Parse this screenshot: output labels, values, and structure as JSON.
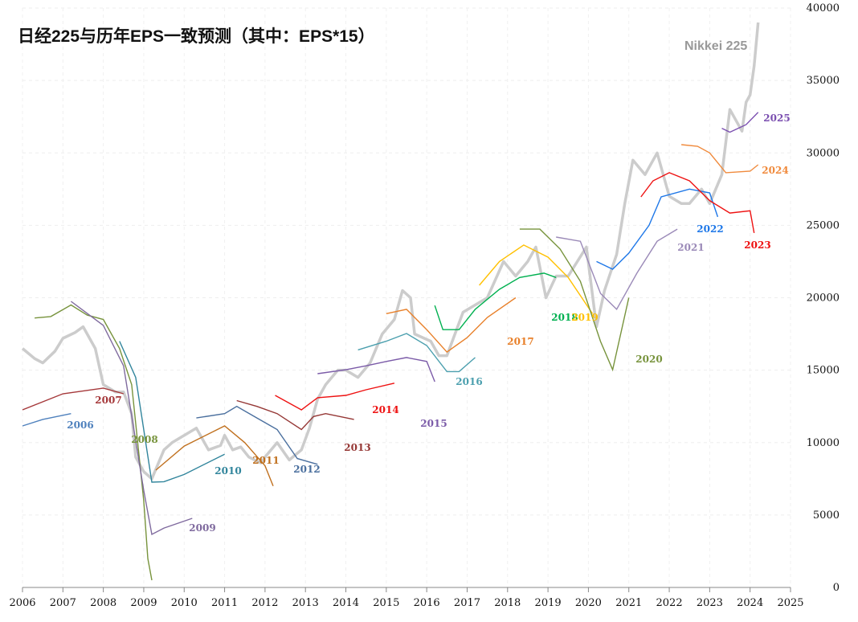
{
  "chart_data": {
    "type": "line",
    "title": "日经225与历年EPS一致预测（其中：EPS*15）",
    "xlabel": "",
    "ylabel": "",
    "xlim": [
      2006,
      2025
    ],
    "ylim": [
      0,
      40000
    ],
    "x_ticks": [
      "2006",
      "2007",
      "2008",
      "2009",
      "2010",
      "2011",
      "2012",
      "2013",
      "2014",
      "2015",
      "2016",
      "2017",
      "2018",
      "2019",
      "2020",
      "2021",
      "2022",
      "2023",
      "2024",
      "2025"
    ],
    "y_ticks": [
      "0",
      "5000",
      "10000",
      "15000",
      "20000",
      "25000",
      "30000",
      "35000",
      "40000"
    ],
    "grid": true,
    "nikkei": {
      "name": "Nikkei 225",
      "color": "#cccccc",
      "x": [
        2006.0,
        2006.3,
        2006.5,
        2006.8,
        2007.0,
        2007.3,
        2007.5,
        2007.8,
        2008.0,
        2008.3,
        2008.5,
        2008.7,
        2008.8,
        2009.0,
        2009.2,
        2009.5,
        2009.7,
        2010.0,
        2010.3,
        2010.6,
        2010.9,
        2011.0,
        2011.2,
        2011.4,
        2011.6,
        2011.9,
        2012.0,
        2012.3,
        2012.6,
        2012.9,
        2013.1,
        2013.3,
        2013.5,
        2013.8,
        2014.0,
        2014.3,
        2014.6,
        2014.9,
        2015.2,
        2015.4,
        2015.6,
        2015.7,
        2016.1,
        2016.3,
        2016.5,
        2016.9,
        2017.2,
        2017.5,
        2017.9,
        2018.2,
        2018.5,
        2018.7,
        2018.95,
        2019.2,
        2019.5,
        2019.95,
        2020.2,
        2020.4,
        2020.7,
        2020.9,
        2021.1,
        2021.4,
        2021.7,
        2022.0,
        2022.3,
        2022.5,
        2022.8,
        2023.0,
        2023.3,
        2023.5,
        2023.8,
        2023.9,
        2024.0,
        2024.1,
        2024.2
      ],
      "y": [
        16500,
        15800,
        15500,
        16300,
        17200,
        17600,
        18000,
        16500,
        14000,
        13500,
        13500,
        12000,
        9000,
        8000,
        7500,
        9500,
        10000,
        10500,
        11000,
        9500,
        9800,
        10500,
        9500,
        9700,
        9000,
        8600,
        9000,
        10000,
        8800,
        9500,
        11000,
        13000,
        14000,
        15000,
        15000,
        14500,
        15500,
        17500,
        18500,
        20500,
        20000,
        17500,
        17000,
        16000,
        16000,
        19000,
        19500,
        20000,
        22500,
        21500,
        22500,
        23500,
        20000,
        21500,
        21500,
        23500,
        18000,
        20500,
        23000,
        26500,
        29500,
        28500,
        30000,
        27000,
        26500,
        26500,
        27500,
        26500,
        28500,
        33000,
        31500,
        33500,
        34000,
        36000,
        39000
      ]
    },
    "series": [
      {
        "name": "2006",
        "color": "#4f81bd",
        "x": [
          2006.0,
          2006.5,
          2007.2
        ],
        "y": [
          11150,
          11600,
          12000
        ]
      },
      {
        "name": "2007",
        "color": "#a5383a",
        "x": [
          2006.0,
          2007.0,
          2008.0,
          2008.5
        ],
        "y": [
          12260,
          13370,
          13760,
          13370
        ]
      },
      {
        "name": "2008",
        "color": "#77933c",
        "x": [
          2006.3,
          2006.7,
          2007.2,
          2007.6,
          2008.0,
          2008.4,
          2008.7,
          2009.0,
          2009.1,
          2009.2
        ],
        "y": [
          18600,
          18700,
          19500,
          18800,
          18500,
          16500,
          14000,
          6000,
          2000,
          500
        ]
      },
      {
        "name": "2009",
        "color": "#7f6a9e",
        "x": [
          2007.2,
          2008.0,
          2008.5,
          2009.0,
          2009.2,
          2009.5,
          2010.2
        ],
        "y": [
          19750,
          18090,
          15300,
          6700,
          3660,
          4100,
          4770
        ]
      },
      {
        "name": "2010",
        "color": "#31859c",
        "x": [
          2008.4,
          2008.8,
          2009.2,
          2009.5,
          2010.0,
          2011.0
        ],
        "y": [
          17000,
          14500,
          7270,
          7300,
          7800,
          9200
        ]
      },
      {
        "name": "2011",
        "color": "#c0701e",
        "x": [
          2009.3,
          2010.0,
          2011.0,
          2011.5,
          2012.0,
          2012.2
        ],
        "y": [
          8100,
          9760,
          11150,
          10000,
          8400,
          7000
        ]
      },
      {
        "name": "2012",
        "color": "#4a6f9e",
        "x": [
          2010.3,
          2011.0,
          2011.3,
          2011.8,
          2012.3,
          2012.8,
          2013.3
        ],
        "y": [
          11700,
          12000,
          12500,
          11700,
          10900,
          8900,
          8500
        ]
      },
      {
        "name": "2013",
        "color": "#953735",
        "x": [
          2011.3,
          2011.8,
          2012.3,
          2012.9,
          2013.2,
          2013.5,
          2014.2
        ],
        "y": [
          12900,
          12500,
          12000,
          10900,
          11800,
          12000,
          11600
        ]
      },
      {
        "name": "2014",
        "color": "#ee1111",
        "x": [
          2012.25,
          2012.9,
          2013.3,
          2014.0,
          2014.5,
          2015.2
        ],
        "y": [
          13260,
          12260,
          13100,
          13260,
          13650,
          14100
        ]
      },
      {
        "name": "2015",
        "color": "#7b5ba8",
        "x": [
          2013.3,
          2014.0,
          2014.5,
          2015.0,
          2015.5,
          2016.0,
          2016.2
        ],
        "y": [
          14760,
          15030,
          15300,
          15600,
          15870,
          15600,
          14200
        ]
      },
      {
        "name": "2016",
        "color": "#4b9fae",
        "x": [
          2014.3,
          2015.0,
          2015.5,
          2016.0,
          2016.5,
          2016.8,
          2017.2
        ],
        "y": [
          16400,
          17000,
          17530,
          16700,
          14900,
          14900,
          15870
        ]
      },
      {
        "name": "2017",
        "color": "#e8802a",
        "x": [
          2015.0,
          2015.5,
          2016.0,
          2016.5,
          2017.0,
          2017.5,
          2018.2
        ],
        "y": [
          18900,
          19200,
          17800,
          16250,
          17250,
          18640,
          20000
        ]
      },
      {
        "name": "2018",
        "color": "#00b050",
        "x": [
          2016.2,
          2016.4,
          2016.8,
          2017.2,
          2017.8,
          2018.3,
          2018.9,
          2019.2
        ],
        "y": [
          19470,
          17800,
          17800,
          19200,
          20580,
          21400,
          21700,
          21400
        ]
      },
      {
        "name": "2019",
        "color": "#ffc000",
        "x": [
          2017.3,
          2017.8,
          2018.4,
          2019.0,
          2019.5,
          2020.1
        ],
        "y": [
          20860,
          22500,
          23640,
          22800,
          21400,
          18900
        ]
      },
      {
        "name": "2020",
        "color": "#77933c",
        "x": [
          2018.3,
          2018.8,
          2019.3,
          2019.8,
          2020.3,
          2020.6,
          2021.0
        ],
        "y": [
          24740,
          24740,
          23360,
          21140,
          16980,
          15030,
          20000
        ]
      },
      {
        "name": "2021",
        "color": "#9b8ab8",
        "x": [
          2019.2,
          2019.8,
          2020.3,
          2020.7,
          2021.2,
          2021.7,
          2022.2
        ],
        "y": [
          24190,
          23900,
          20300,
          19200,
          21700,
          23900,
          24740
        ]
      },
      {
        "name": "2022",
        "color": "#1f78e8",
        "x": [
          2020.2,
          2020.6,
          2021.0,
          2021.5,
          2021.8,
          2022.5,
          2023.0,
          2023.2
        ],
        "y": [
          22500,
          21970,
          23080,
          25000,
          26960,
          27500,
          27240,
          25580
        ]
      },
      {
        "name": "2023",
        "color": "#ee1111",
        "x": [
          2021.3,
          2021.6,
          2022.0,
          2022.5,
          2023.0,
          2023.5,
          2024.0,
          2024.1
        ],
        "y": [
          26960,
          28070,
          28630,
          28070,
          26700,
          25850,
          26000,
          24470
        ]
      },
      {
        "name": "2024",
        "color": "#f08a3c",
        "x": [
          2022.3,
          2022.7,
          2023.0,
          2023.4,
          2024.0,
          2024.2
        ],
        "y": [
          30570,
          30460,
          30000,
          28630,
          28740,
          29180
        ]
      },
      {
        "name": "2025",
        "color": "#7b4fb0",
        "x": [
          2023.3,
          2023.5,
          2023.9,
          2024.2
        ],
        "y": [
          31700,
          31430,
          31950,
          32800
        ]
      }
    ]
  }
}
